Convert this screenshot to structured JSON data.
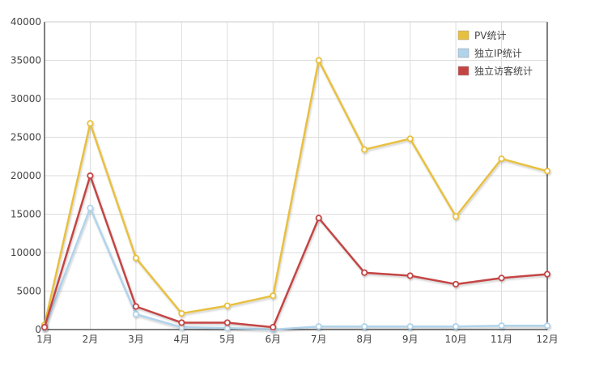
{
  "chart_data": {
    "type": "line",
    "categories": [
      "1月",
      "2月",
      "3月",
      "4月",
      "5月",
      "6月",
      "7月",
      "8月",
      "9月",
      "10月",
      "11月",
      "12月"
    ],
    "yticks": [
      "0",
      "5000",
      "10000",
      "15000",
      "20000",
      "25000",
      "30000",
      "35000",
      "40000"
    ],
    "ylim": [
      0,
      40000
    ],
    "grid": true,
    "legend_position": "top-right",
    "series": [
      {
        "name": "PV统计",
        "color": "#e8c040",
        "values": [
          600,
          26800,
          9300,
          2100,
          3100,
          4400,
          35000,
          23400,
          24800,
          14700,
          22200,
          20600
        ]
      },
      {
        "name": "独立IP统计",
        "color": "#b0d4ec",
        "values": [
          200,
          15800,
          2000,
          300,
          200,
          0,
          400,
          400,
          400,
          400,
          500,
          500
        ]
      },
      {
        "name": "独立访客统计",
        "color": "#c44444",
        "values": [
          300,
          20000,
          3000,
          900,
          900,
          300,
          14500,
          7400,
          7000,
          5900,
          6700,
          7200
        ]
      }
    ]
  }
}
